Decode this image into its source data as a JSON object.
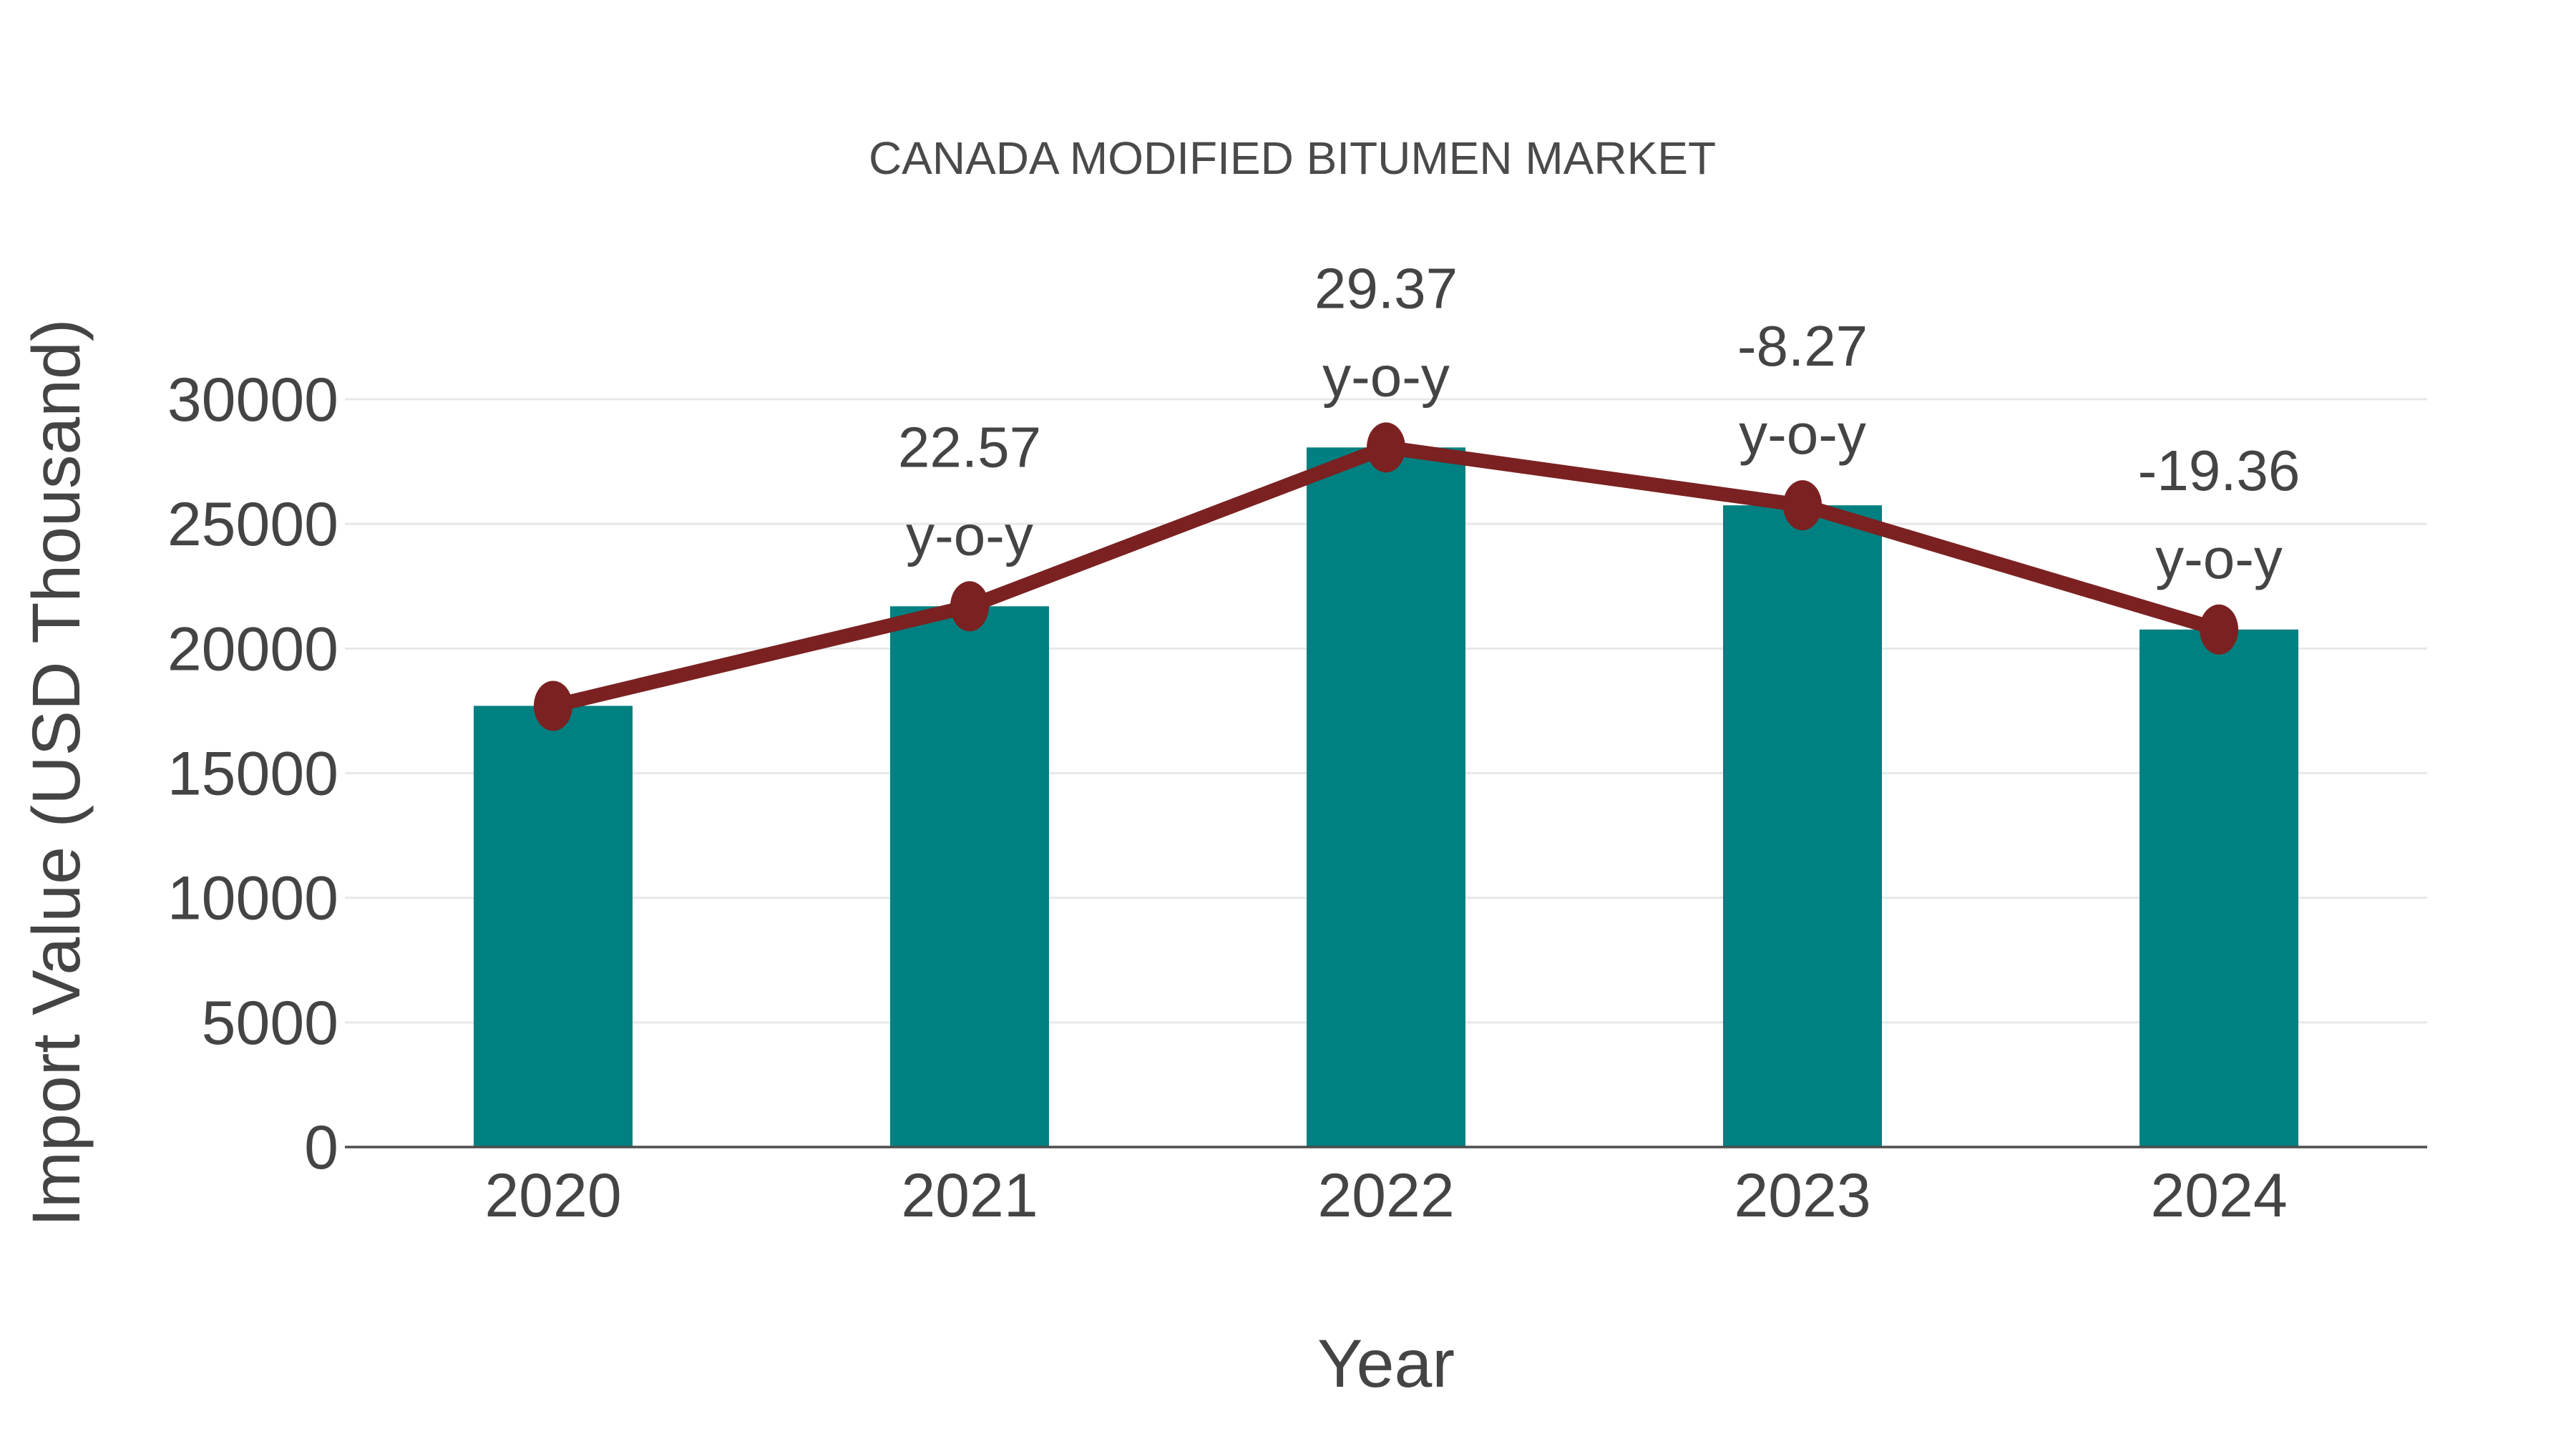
{
  "chart_data": {
    "type": "bar",
    "title": "CANADA MODIFIED BITUMEN MARKET",
    "xlabel": "Year",
    "ylabel": "Import Value (USD Thousand)",
    "categories": [
      "2020",
      "2021",
      "2022",
      "2023",
      "2024"
    ],
    "series": [
      {
        "name": "Import Value (USD Thousand)",
        "type": "bar",
        "color": "#008080",
        "values": [
          17700,
          21695,
          28067,
          25746,
          20762
        ]
      },
      {
        "name": "y-o-y growth (%)",
        "type": "line",
        "color": "#7b2121",
        "values": [
          null,
          22.57,
          29.37,
          -8.27,
          -19.36
        ],
        "plotted_at_bar_tops": true
      }
    ],
    "point_labels": [
      {
        "category": "2021",
        "line1": "22.57",
        "line2": "y-o-y"
      },
      {
        "category": "2022",
        "line1": "29.37",
        "line2": "y-o-y"
      },
      {
        "category": "2023",
        "line1": "-8.27",
        "line2": "y-o-y"
      },
      {
        "category": "2024",
        "line1": "-19.36",
        "line2": "y-o-y"
      }
    ],
    "ylim": [
      0,
      30000
    ],
    "yticks": [
      0,
      5000,
      10000,
      15000,
      20000,
      25000,
      30000
    ],
    "grid": true,
    "legend_position": "none"
  },
  "colors": {
    "bar": "#008080",
    "line": "#7b2121",
    "grid": "#e8e8e8",
    "axis_line": "#4d4d4d",
    "text": "#444444",
    "title": "#4a4a4a",
    "background": "#ffffff"
  }
}
